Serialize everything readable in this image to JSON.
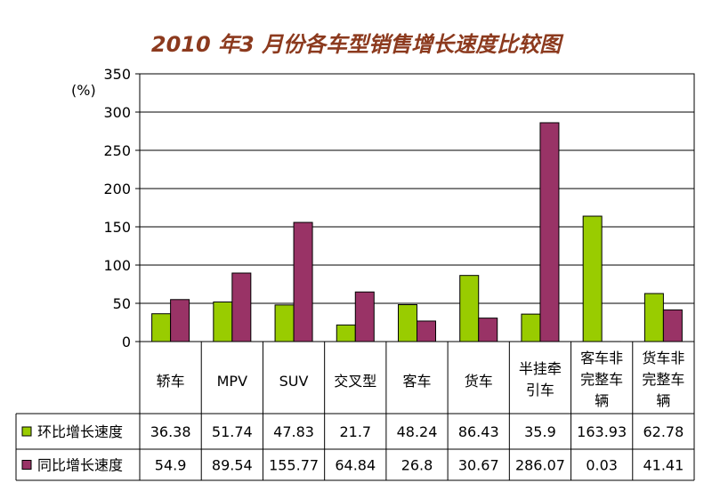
{
  "chart_data": {
    "type": "bar",
    "title": "2010 年3 月份各车型销售增长速度比较图",
    "ylabel": "(%)",
    "ylim": [
      0,
      350
    ],
    "yticks": [
      0,
      50,
      100,
      150,
      200,
      250,
      300,
      350
    ],
    "grid": true,
    "legend": "table-left",
    "categories": [
      "轿车",
      "MPV",
      "SUV",
      "交叉型",
      "客车",
      "货车",
      "半挂牵引车",
      "客车非完整车辆",
      "货车非完整车辆"
    ],
    "category_lines": [
      [
        "轿车"
      ],
      [
        "MPV"
      ],
      [
        "SUV"
      ],
      [
        "交叉型"
      ],
      [
        "客车"
      ],
      [
        "货车"
      ],
      [
        "半挂牵",
        "引车"
      ],
      [
        "客车非",
        "完整车",
        "辆"
      ],
      [
        "货车非",
        "完整车",
        "辆"
      ]
    ],
    "series": [
      {
        "name": "环比增长速度",
        "color": "#99cc00",
        "values": [
          36.38,
          51.74,
          47.83,
          21.7,
          48.24,
          86.43,
          35.9,
          163.93,
          62.78
        ],
        "labels": [
          "36.38",
          "51.74",
          "47.83",
          "21.7",
          "48.24",
          "86.43",
          "35.9",
          "163.93",
          "62.78"
        ]
      },
      {
        "name": "同比增长速度",
        "color": "#993366",
        "values": [
          54.9,
          89.54,
          155.77,
          64.84,
          26.8,
          30.67,
          286.07,
          0.03,
          41.41
        ],
        "labels": [
          "54.9",
          "89.54",
          "155.77",
          "64.84",
          "26.8",
          "30.67",
          "286.07",
          "0.03",
          "41.41"
        ]
      }
    ]
  }
}
